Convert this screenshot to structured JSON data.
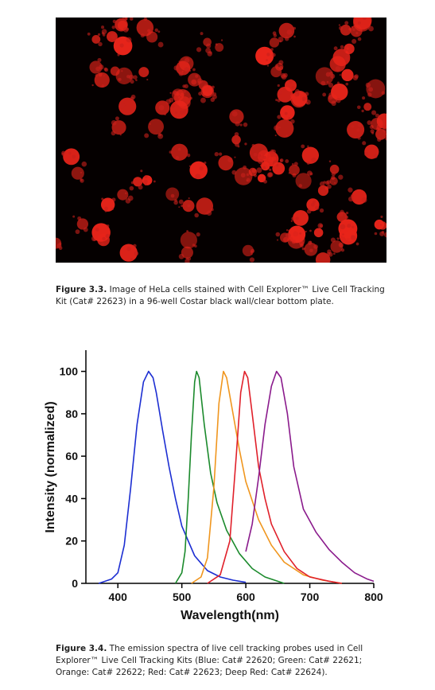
{
  "figures": [
    {
      "label": "Figure 3.3.",
      "caption": "Image of HeLa cells stained with Cell Explorer™ Live Cell Tracking Kit (Cat# 22623) in a 96-well Costar black wall/clear bottom plate."
    },
    {
      "label": "Figure 3.4.",
      "caption": "The emission spectra of live cell tracking probes used in Cell Explorer™ Live Cell Tracking Kits (Blue: Cat# 22620; Green: Cat# 22621; Orange: Cat# 22622; Red: Cat# 22623; Deep Red: Cat# 22624)."
    }
  ],
  "chart_data": {
    "type": "line",
    "x_label": "Wavelength(nm)",
    "y_label": "Intensity (normalized)",
    "xlim": [
      350,
      800
    ],
    "ylim": [
      0,
      110
    ],
    "xticks": [
      400,
      500,
      600,
      700,
      800
    ],
    "yticks": [
      0,
      20,
      40,
      60,
      80,
      100
    ],
    "series": [
      {
        "color": "#1c2ed2",
        "x": [
          370,
          390,
          400,
          410,
          420,
          430,
          440,
          448,
          455,
          460,
          470,
          480,
          490,
          500,
          520,
          540,
          560,
          580,
          600
        ],
        "values": [
          0,
          2,
          5,
          18,
          45,
          75,
          95,
          100,
          97,
          90,
          72,
          55,
          40,
          27,
          13,
          6,
          3,
          1.5,
          0.5
        ]
      },
      {
        "color": "#1b8a2c",
        "x": [
          490,
          500,
          505,
          510,
          515,
          520,
          523,
          527,
          535,
          545,
          555,
          570,
          590,
          610,
          630,
          650,
          660
        ],
        "values": [
          0,
          5,
          15,
          40,
          70,
          95,
          100,
          97,
          75,
          52,
          38,
          25,
          14,
          7,
          3,
          1,
          0
        ]
      },
      {
        "color": "#f0961e",
        "x": [
          515,
          530,
          540,
          550,
          558,
          565,
          570,
          580,
          590,
          600,
          620,
          640,
          660,
          690,
          720,
          750
        ],
        "values": [
          0,
          3,
          12,
          45,
          85,
          100,
          97,
          80,
          63,
          48,
          30,
          18,
          10,
          4,
          1.5,
          0
        ]
      },
      {
        "color": "#e0202a",
        "x": [
          540,
          560,
          575,
          585,
          592,
          598,
          603,
          610,
          620,
          630,
          640,
          660,
          680,
          700,
          730,
          750
        ],
        "values": [
          0,
          4,
          20,
          60,
          90,
          100,
          97,
          80,
          55,
          40,
          28,
          15,
          7,
          3,
          1,
          0
        ]
      },
      {
        "color": "#8a1a8c",
        "x": [
          600,
          610,
          620,
          630,
          640,
          648,
          655,
          665,
          675,
          690,
          710,
          730,
          750,
          770,
          790,
          800
        ],
        "values": [
          15,
          28,
          50,
          75,
          93,
          100,
          97,
          80,
          55,
          35,
          24,
          16,
          10,
          5,
          2,
          1
        ]
      }
    ]
  }
}
